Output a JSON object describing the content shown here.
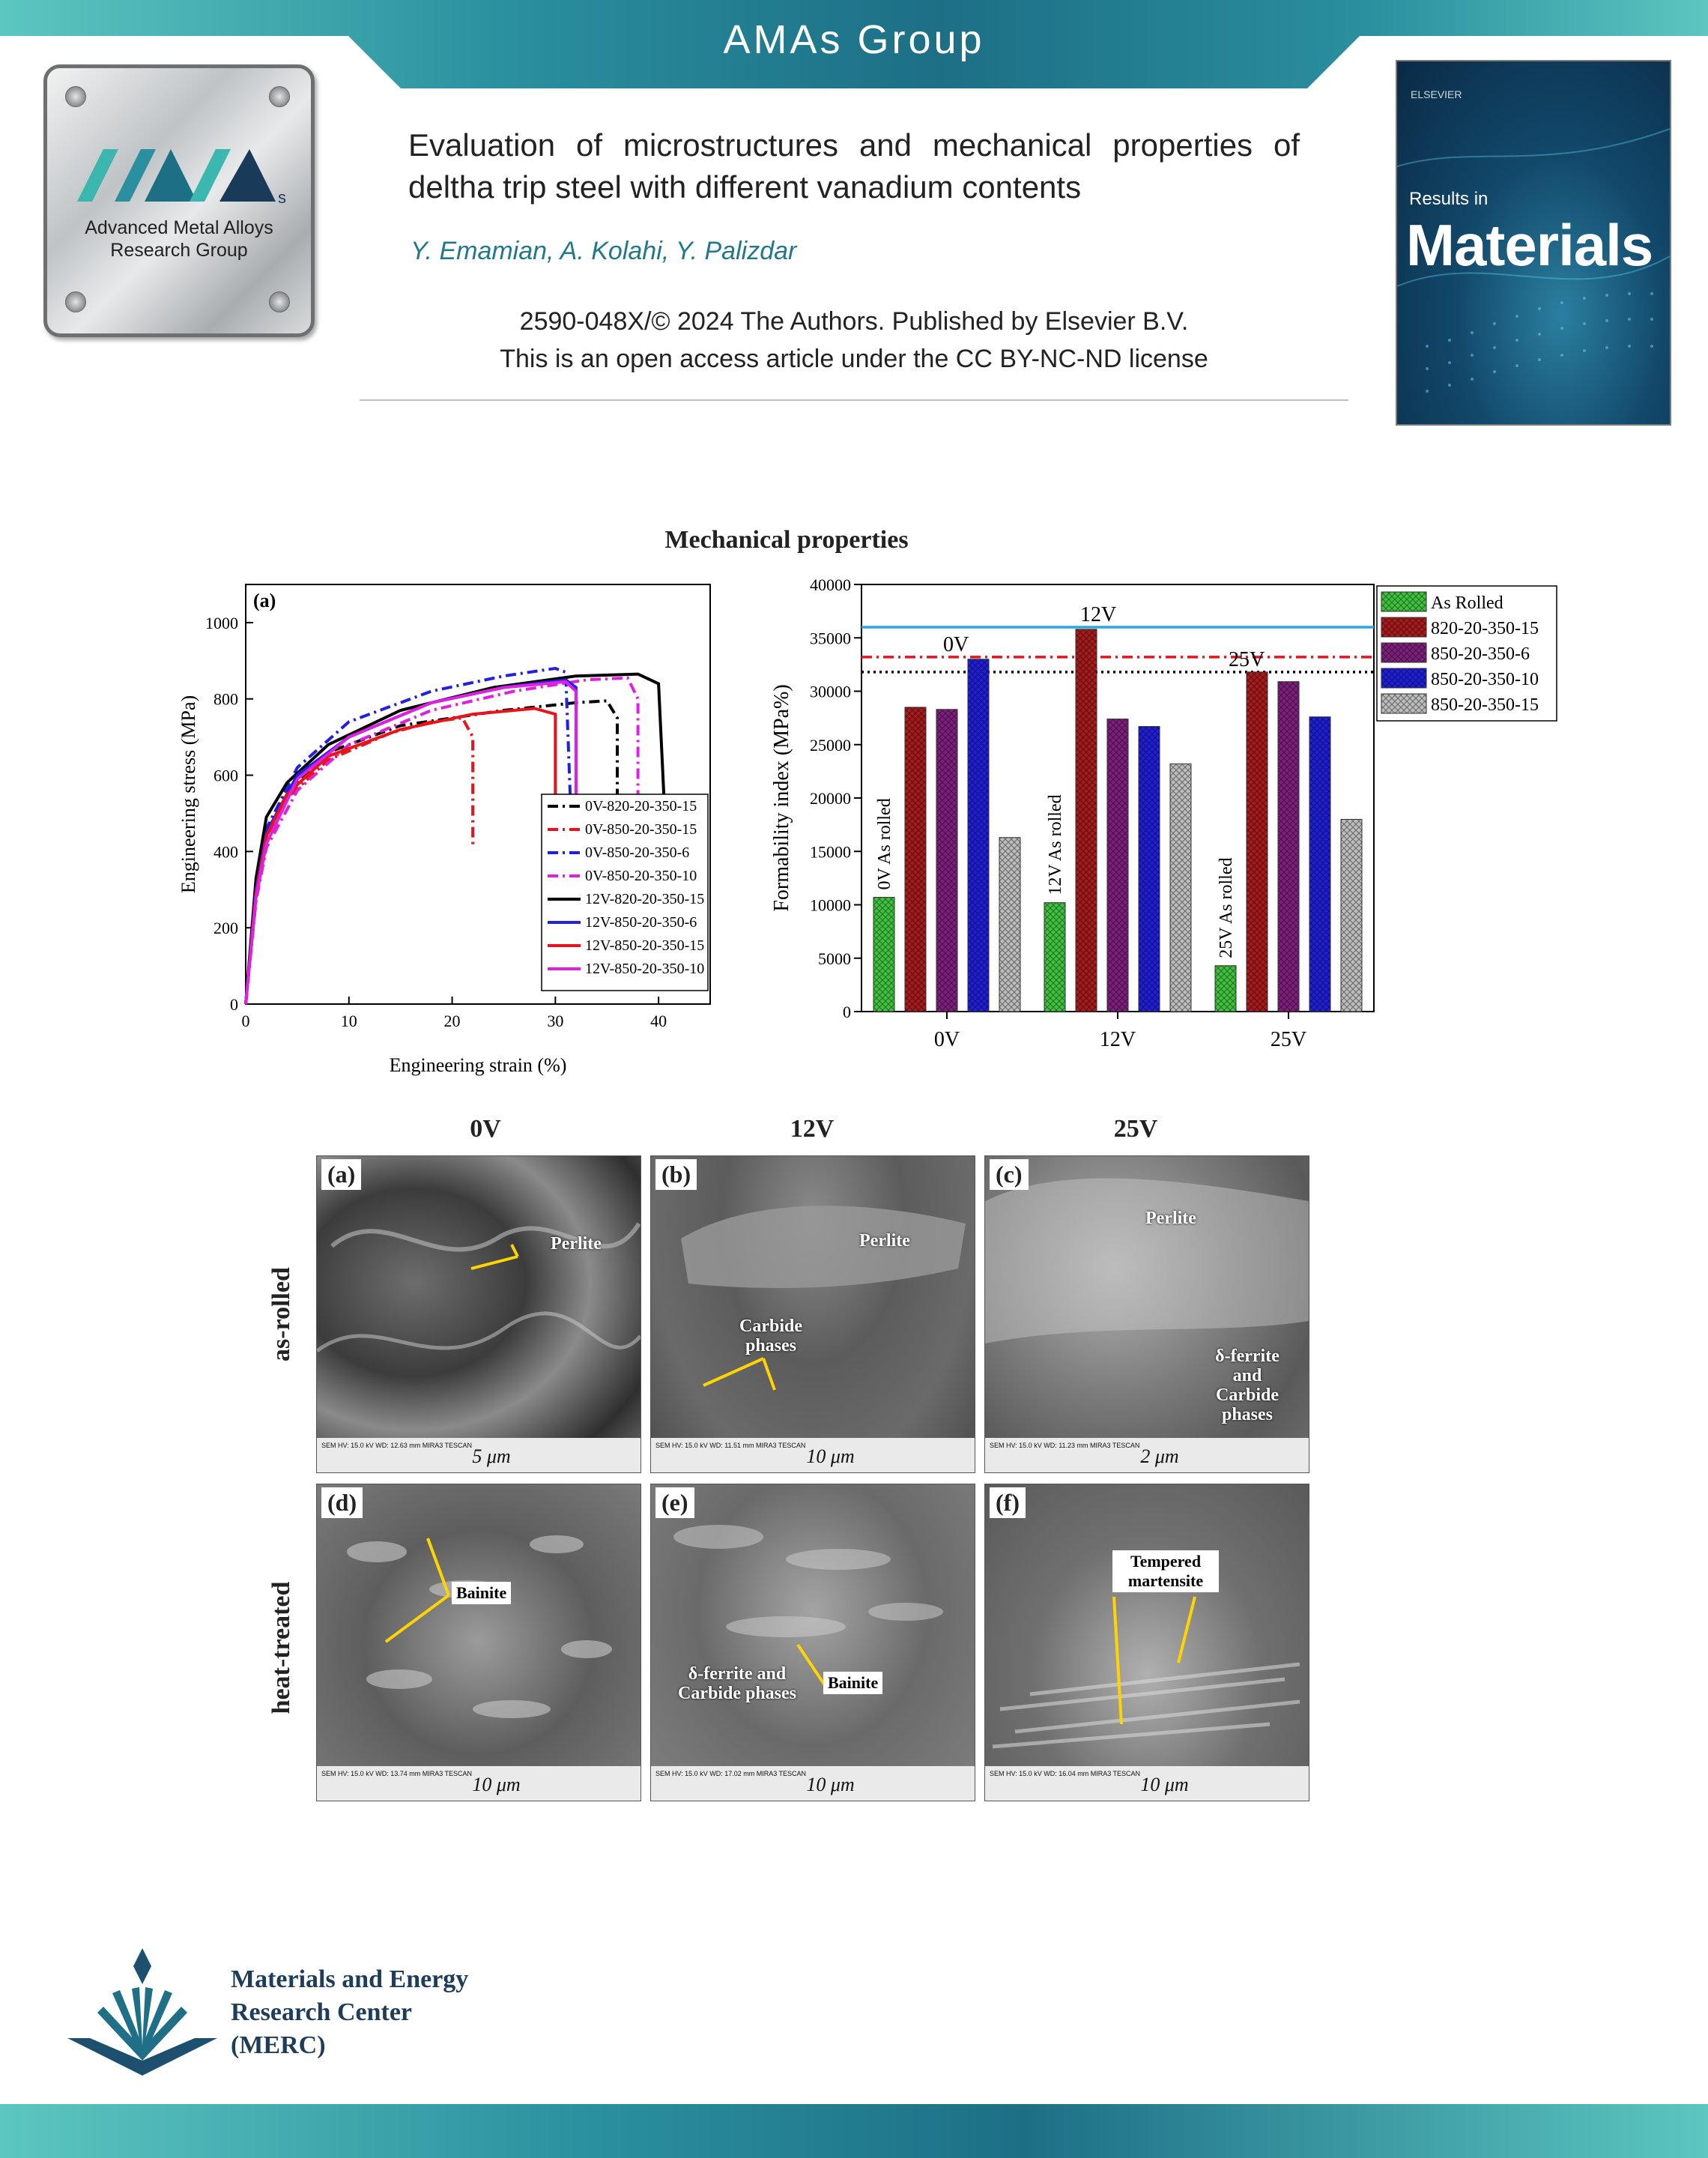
{
  "header": {
    "group_title": "AMAs Group",
    "logo_text_line1": "Advanced Metal Alloys",
    "logo_text_line2": "Research Group",
    "logo_mark": "AMA",
    "logo_mark_sub": "s"
  },
  "article": {
    "title": "Evaluation of microstructures and mechanical properties of deltha trip steel with different vanadium contents",
    "authors": "Y. Emamian, A. Kolahi, Y. Palizdar",
    "copyright_line1": "2590-048X/© 2024 The Authors. Published by Elsevier B.V.",
    "copyright_line2": "This is an open access article under the CC BY-NC-ND license"
  },
  "journal_cover": {
    "publisher": "ELSEVIER",
    "results_in": "Results in",
    "journal_name": "Materials"
  },
  "section_heading": "Mechanical properties",
  "chart_data": [
    {
      "type": "line",
      "panel_label": "(a)",
      "xlabel": "Engineering strain (%)",
      "ylabel": "Engineering stress (MPa)",
      "xlim": [
        0,
        45
      ],
      "ylim": [
        0,
        1100
      ],
      "xticks": [
        0,
        10,
        20,
        30,
        40
      ],
      "yticks": [
        0,
        200,
        400,
        600,
        800,
        1000
      ],
      "legend_position": "bottom-right",
      "series": [
        {
          "name": "0V-820-20-350-15",
          "color": "#000000",
          "dash": "dashdot",
          "points": [
            [
              0,
              0
            ],
            [
              1,
              300
            ],
            [
              2,
              450
            ],
            [
              4,
              560
            ],
            [
              8,
              660
            ],
            [
              15,
              730
            ],
            [
              25,
              770
            ],
            [
              32,
              790
            ],
            [
              35,
              795
            ],
            [
              36,
              750
            ],
            [
              36,
              270
            ]
          ]
        },
        {
          "name": "0V-850-20-350-15",
          "color": "#e8141b",
          "dash": "dashdot",
          "points": [
            [
              0,
              0
            ],
            [
              1,
              280
            ],
            [
              2,
              430
            ],
            [
              4,
              540
            ],
            [
              8,
              640
            ],
            [
              14,
              710
            ],
            [
              18,
              740
            ],
            [
              21,
              750
            ],
            [
              22,
              700
            ],
            [
              22,
              410
            ]
          ]
        },
        {
          "name": "0V-850-20-350-6",
          "color": "#2020e0",
          "dash": "dashdot",
          "points": [
            [
              0,
              0
            ],
            [
              1,
              300
            ],
            [
              2,
              460
            ],
            [
              5,
              620
            ],
            [
              10,
              740
            ],
            [
              18,
              820
            ],
            [
              25,
              860
            ],
            [
              30,
              880
            ],
            [
              31,
              870
            ],
            [
              31.5,
              500
            ],
            [
              32,
              270
            ]
          ]
        },
        {
          "name": "0V-850-20-350-10",
          "color": "#e020e0",
          "dash": "dashdot",
          "points": [
            [
              0,
              0
            ],
            [
              1,
              270
            ],
            [
              2,
              410
            ],
            [
              5,
              560
            ],
            [
              10,
              680
            ],
            [
              18,
              770
            ],
            [
              26,
              820
            ],
            [
              33,
              850
            ],
            [
              37,
              855
            ],
            [
              38,
              800
            ],
            [
              38,
              270
            ]
          ]
        },
        {
          "name": "12V-820-20-350-15",
          "color": "#000000",
          "dash": "solid",
          "points": [
            [
              0,
              0
            ],
            [
              1,
              330
            ],
            [
              2,
              490
            ],
            [
              4,
              580
            ],
            [
              8,
              680
            ],
            [
              15,
              770
            ],
            [
              24,
              830
            ],
            [
              32,
              860
            ],
            [
              38,
              865
            ],
            [
              40,
              840
            ],
            [
              41,
              270
            ]
          ]
        },
        {
          "name": "12V-850-20-350-6",
          "color": "#2020e0",
          "dash": "solid",
          "points": [
            [
              0,
              0
            ],
            [
              1,
              300
            ],
            [
              2,
              450
            ],
            [
              5,
              600
            ],
            [
              10,
              700
            ],
            [
              18,
              790
            ],
            [
              25,
              830
            ],
            [
              31,
              850
            ],
            [
              32,
              830
            ],
            [
              32,
              270
            ]
          ]
        },
        {
          "name": "12V-850-20-350-15",
          "color": "#e8141b",
          "dash": "solid",
          "points": [
            [
              0,
              0
            ],
            [
              1,
              290
            ],
            [
              2,
              440
            ],
            [
              4,
              550
            ],
            [
              8,
              650
            ],
            [
              15,
              720
            ],
            [
              22,
              760
            ],
            [
              28,
              775
            ],
            [
              30,
              760
            ],
            [
              30,
              270
            ]
          ]
        },
        {
          "name": "12V-850-20-350-10",
          "color": "#e020e0",
          "dash": "solid",
          "points": [
            [
              0,
              0
            ],
            [
              1,
              280
            ],
            [
              2,
              420
            ],
            [
              5,
              590
            ],
            [
              10,
              700
            ],
            [
              18,
              790
            ],
            [
              25,
              830
            ],
            [
              31,
              845
            ],
            [
              32,
              820
            ],
            [
              32,
              270
            ]
          ]
        }
      ]
    },
    {
      "type": "bar",
      "xlabel": "",
      "ylabel": "Formability index (MPa%)",
      "ylim": [
        0,
        40000
      ],
      "yticks": [
        0,
        5000,
        10000,
        15000,
        20000,
        25000,
        30000,
        35000,
        40000
      ],
      "categories": [
        "0V",
        "12V",
        "25V"
      ],
      "legend_position": "top-right-outside",
      "series": [
        {
          "name": "As Rolled",
          "color": "#3fc23f",
          "values": [
            10700,
            10200,
            4300
          ]
        },
        {
          "name": "820-20-350-15",
          "color": "#a61c1c",
          "values": [
            28500,
            35800,
            31800
          ]
        },
        {
          "name": "850-20-350-6",
          "color": "#7d1f7d",
          "values": [
            28300,
            27400,
            30900
          ]
        },
        {
          "name": "850-20-350-10",
          "color": "#1f1fd6",
          "values": [
            33000,
            26700,
            27600
          ]
        },
        {
          "name": "850-20-350-15",
          "color": "#bdbdbd",
          "values": [
            16300,
            23200,
            18000
          ]
        }
      ],
      "bar_labels": [
        "0V As rolled",
        "12V As rolled",
        "25V As rolled"
      ],
      "reference_lines": [
        {
          "label": "12V",
          "value": 36000,
          "color": "#29a8e0",
          "dash": "solid"
        },
        {
          "label": "0V",
          "value": 33200,
          "color": "#e8141b",
          "dash": "dashdot"
        },
        {
          "label": "25V",
          "value": 31800,
          "color": "#000000",
          "dash": "dotted"
        }
      ]
    }
  ],
  "micrographs": {
    "columns": [
      "0V",
      "12V",
      "25V"
    ],
    "rows": [
      "as-rolled",
      "heat-treated"
    ],
    "panels": [
      {
        "label": "(a)",
        "annotations": [
          "Perlite"
        ],
        "scale": "5 μm",
        "info": "SEM HV: 15.0 kV  WD: 12.63 mm  MIRA3 TESCAN"
      },
      {
        "label": "(b)",
        "annotations": [
          "Perlite",
          "Carbide phases"
        ],
        "scale": "10 μm",
        "info": "SEM HV: 15.0 kV  WD: 11.51 mm  MIRA3 TESCAN"
      },
      {
        "label": "(c)",
        "annotations": [
          "Perlite",
          "δ-ferrite and Carbide phases"
        ],
        "scale": "2 μm",
        "info": "SEM HV: 15.0 kV  WD: 11.23 mm  MIRA3 TESCAN"
      },
      {
        "label": "(d)",
        "annotations": [
          "Bainite"
        ],
        "scale": "10 μm",
        "info": "SEM HV: 15.0 kV  WD: 13.74 mm  MIRA3 TESCAN"
      },
      {
        "label": "(e)",
        "annotations": [
          "δ-ferrite and Carbide phases",
          "Bainite"
        ],
        "scale": "10 μm",
        "info": "SEM HV: 15.0 kV  WD: 17.02 mm  MIRA3 TESCAN"
      },
      {
        "label": "(f)",
        "annotations": [
          "Tempered martensite"
        ],
        "scale": "10 μm",
        "info": "SEM HV: 15.0 kV  WD: 16.04 mm  MIRA3 TESCAN"
      }
    ]
  },
  "footer": {
    "merc_line1": "Materials and Energy",
    "merc_line2": "Research Center",
    "merc_line3": "(MERC)"
  }
}
